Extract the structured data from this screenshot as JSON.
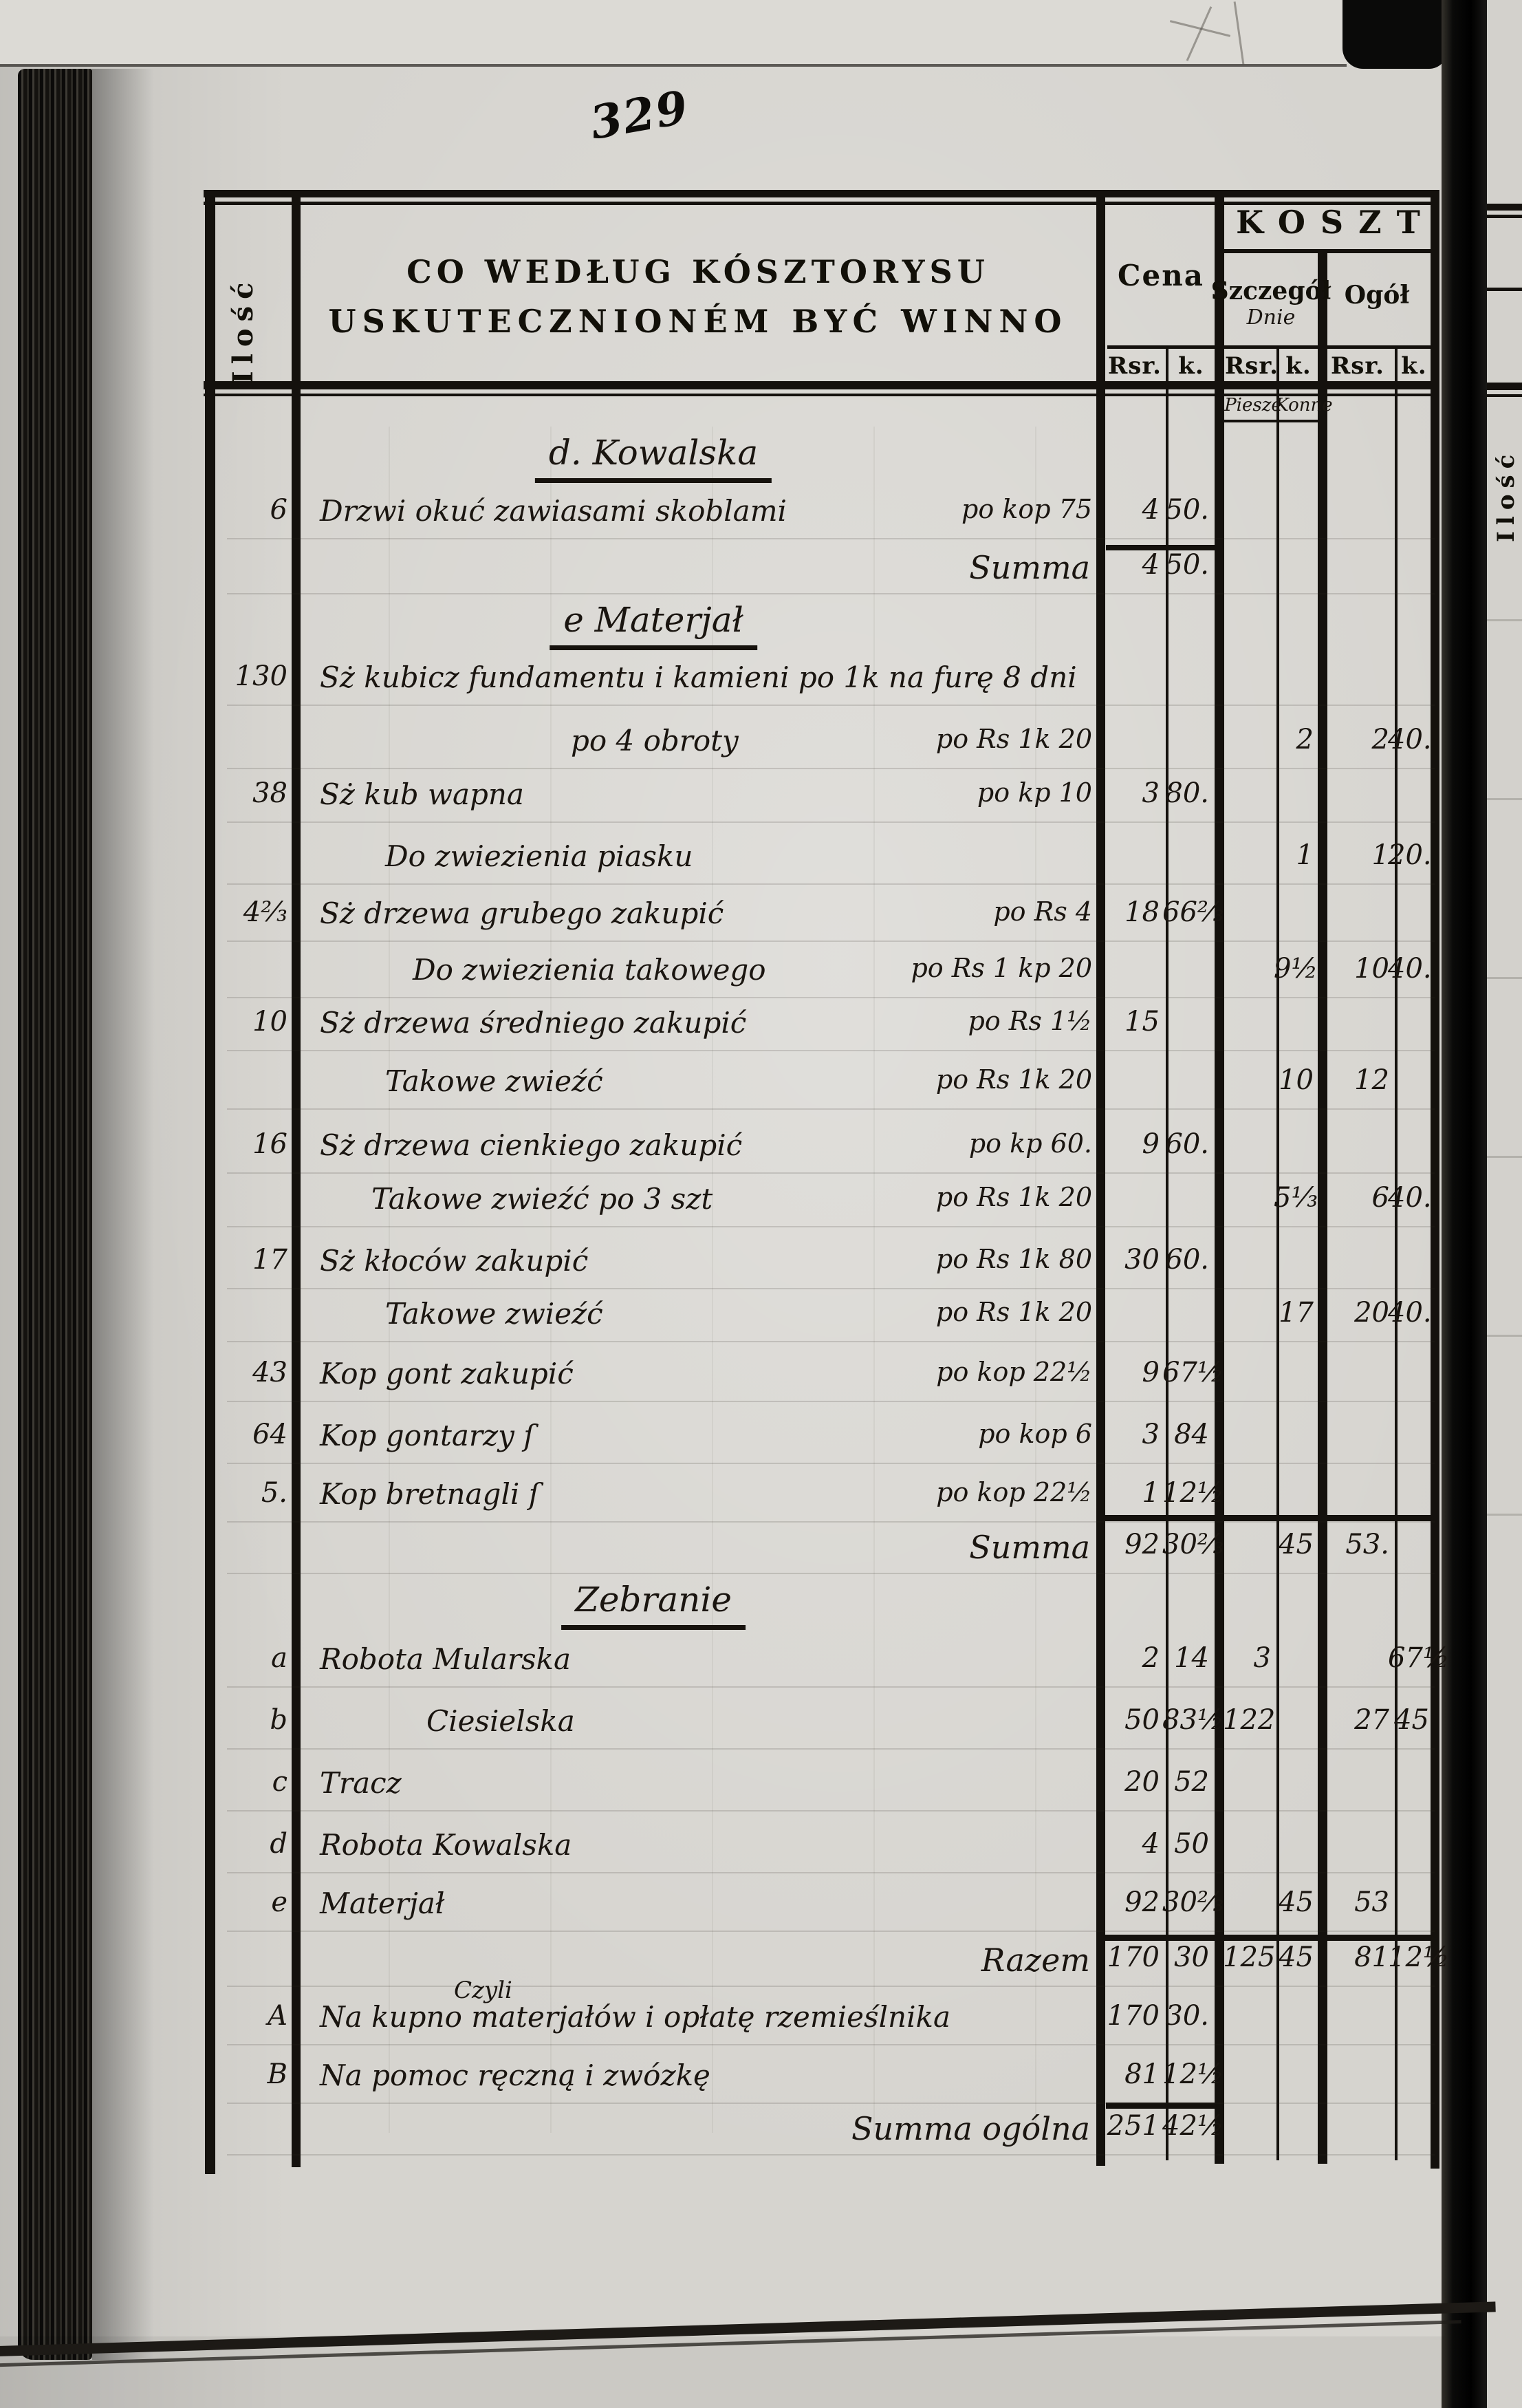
{
  "page_number": "329",
  "colors": {
    "paper": "#d6d4cf",
    "ink": "#14110d"
  },
  "header": {
    "ilosc": "Ilość",
    "title_line1": "CO WEDŁUG KÓSZTORYSU",
    "title_line2": "USKUTECZNIONÉM BYĆ WINNO",
    "cena": "Cena",
    "koszt": "KOSZT",
    "szczegol": "Szczegół",
    "szczegol_sub": "Dnie",
    "ogol": "Ogół",
    "rsr": "Rsr.",
    "k": "k.",
    "dni_piesze": "Piesze",
    "dni_konne": "Konne"
  },
  "facing_page": {
    "ilosc": "Ilość"
  },
  "rows": [
    {
      "kind": "heading",
      "text": "d. Kowalska"
    },
    {
      "kind": "entry",
      "qty": "6",
      "text": "Drzwi okuć zawiasami skoblami",
      "note": "po kop 75",
      "cena_rsr": "4",
      "cena_k": "50."
    },
    {
      "kind": "total",
      "label": "Summa",
      "cena_rsr": "4",
      "cena_k": "50."
    },
    {
      "kind": "heading",
      "text": "e Materjał"
    },
    {
      "kind": "entry",
      "qty": "130",
      "text": "Sż kubicz fundamentu i kamieni po 1k na furę 8 dni"
    },
    {
      "kind": "entry",
      "text": "po 4 obroty",
      "note": "po Rs 1k 20",
      "dni_konne": "2",
      "ogol_rsr": "2",
      "ogol_k": "40."
    },
    {
      "kind": "entry",
      "qty": "38",
      "text": "Sż kub wapna",
      "note": "po kp 10",
      "cena_rsr": "3",
      "cena_k": "80."
    },
    {
      "kind": "entry",
      "text": "Do zwiezienia piasku",
      "dni_konne": "1",
      "ogol_rsr": "1",
      "ogol_k": "20."
    },
    {
      "kind": "entry",
      "qty": "4⅔",
      "text": "Sż drzewa grubego zakupić",
      "note": "po Rs 4",
      "cena_rsr": "18",
      "cena_k": "66⅔"
    },
    {
      "kind": "entry",
      "text": "Do zwiezienia takowego",
      "note": "po Rs 1 kp 20",
      "dni_konne": "9½",
      "ogol_rsr": "10",
      "ogol_k": "40."
    },
    {
      "kind": "entry",
      "qty": "10",
      "text": "Sż drzewa średniego zakupić",
      "note": "po Rs 1½",
      "cena_rsr": "15"
    },
    {
      "kind": "entry",
      "text": "Takowe zwieźć",
      "note": "po Rs 1k 20",
      "dni_konne": "10",
      "ogol_rsr": "12"
    },
    {
      "kind": "entry",
      "qty": "16",
      "text": "Sż drzewa cienkiego zakupić",
      "note": "po kp 60.",
      "cena_rsr": "9",
      "cena_k": "60."
    },
    {
      "kind": "entry",
      "text": "Takowe zwieźć po 3 szt",
      "note": "po Rs 1k 20",
      "dni_konne": "5⅓",
      "ogol_rsr": "6",
      "ogol_k": "40."
    },
    {
      "kind": "entry",
      "qty": "17",
      "text": "Sż kłoców zakupić",
      "note": "po Rs 1k 80",
      "cena_rsr": "30",
      "cena_k": "60."
    },
    {
      "kind": "entry",
      "text": "Takowe zwieźć",
      "note": "po Rs 1k 20",
      "dni_konne": "17",
      "ogol_rsr": "20",
      "ogol_k": "40."
    },
    {
      "kind": "entry",
      "qty": "43",
      "text": "Kop gont zakupić",
      "note": "po kop 22½",
      "cena_rsr": "9",
      "cena_k": "67½"
    },
    {
      "kind": "entry",
      "qty": "64",
      "text": "Kop gontarzy ſ",
      "note": "po kop 6",
      "cena_rsr": "3",
      "cena_k": "84"
    },
    {
      "kind": "entry",
      "qty": "5.",
      "text": "Kop bretnagli ſ",
      "note": "po kop 22½",
      "cena_rsr": "1",
      "cena_k": "12½"
    },
    {
      "kind": "total",
      "label": "Summa",
      "cena_rsr": "92",
      "cena_k": "30⅔",
      "dni_konne": "45",
      "ogol_rsr": "53."
    },
    {
      "kind": "heading",
      "text": "Zebranie"
    },
    {
      "kind": "entry",
      "qty": "a",
      "text": "Robota Mularska",
      "cena_rsr": "2",
      "cena_k": "14",
      "dni_piesze": "3",
      "ogol_k": "67½"
    },
    {
      "kind": "entry",
      "qty": "b",
      "text": "Ciesielska",
      "cena_rsr": "50",
      "cena_k": "83½",
      "dni_piesze": "122",
      "ogol_rsr": "27",
      "ogol_k": "45"
    },
    {
      "kind": "entry",
      "qty": "c",
      "text": "Tracz",
      "cena_rsr": "20",
      "cena_k": "52"
    },
    {
      "kind": "entry",
      "qty": "d",
      "text": "Robota Kowalska",
      "cena_rsr": "4",
      "cena_k": "50"
    },
    {
      "kind": "entry",
      "qty": "e",
      "text": "Materjał",
      "cena_rsr": "92",
      "cena_k": "30⅔",
      "dni_konne": "45",
      "ogol_rsr": "53"
    },
    {
      "kind": "total",
      "label": "Razem",
      "cena_rsr": "170",
      "cena_k": "30",
      "dni_piesze": "125",
      "dni_konne": "45",
      "ogol_rsr": "81",
      "ogol_k": "12½"
    },
    {
      "kind": "note",
      "text": "Czyli"
    },
    {
      "kind": "entry",
      "qty": "A",
      "text": "Na kupno materjałów i opłatę rzemieślnika",
      "cena_rsr": "170",
      "cena_k": "30."
    },
    {
      "kind": "entry",
      "qty": "B",
      "text": "Na pomoc ręczną i zwózkę",
      "cena_rsr": "81",
      "cena_k": "12½"
    },
    {
      "kind": "total",
      "label": "Summa ogólna",
      "cena_rsr": "251",
      "cena_k": "42½"
    }
  ]
}
